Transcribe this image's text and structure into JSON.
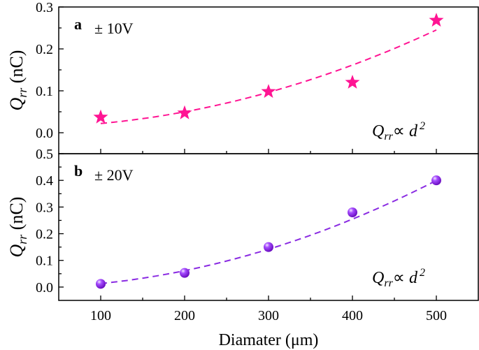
{
  "chart_data": [
    {
      "type": "scatter",
      "panel_label": "a",
      "annotation": "± 10V",
      "relation": {
        "lhs": "Q",
        "sub": "rr",
        "op": "∝ d",
        "exp": "2"
      },
      "ylabel": {
        "main": "Q",
        "sub": "rr",
        "unit": " (nC)"
      },
      "xlim": [
        50,
        550
      ],
      "ylim": [
        -0.05,
        0.3
      ],
      "yticks": [
        "0.0",
        "0.1",
        "0.2",
        "0.3"
      ],
      "x": [
        100,
        200,
        300,
        400,
        500
      ],
      "y": [
        0.037,
        0.047,
        0.098,
        0.12,
        0.268
      ],
      "marker": "star",
      "color": "#ff1493",
      "fit": {
        "style": "dashed",
        "form": "quadratic",
        "a": 9.3e-07,
        "c": 0.0127
      }
    },
    {
      "type": "scatter",
      "panel_label": "b",
      "annotation": "± 20V",
      "relation": {
        "lhs": "Q",
        "sub": "rr",
        "op": "∝ d",
        "exp": "2"
      },
      "ylabel": {
        "main": "Q",
        "sub": "rr",
        "unit": " (nC)"
      },
      "xlim": [
        50,
        550
      ],
      "ylim": [
        -0.05,
        0.5
      ],
      "yticks": [
        "0.0",
        "0.1",
        "0.2",
        "0.3",
        "0.4",
        "0.5"
      ],
      "x": [
        100,
        200,
        300,
        400,
        500
      ],
      "y": [
        0.012,
        0.053,
        0.15,
        0.28,
        0.4
      ],
      "marker": "sphere",
      "color": "#8a2be2",
      "fit": {
        "style": "dashed",
        "form": "quadratic",
        "a": 1.61e-06,
        "c": -0.003
      }
    }
  ],
  "xaxis": {
    "label": "Diamater (μm)",
    "ticks": [
      "100",
      "200",
      "300",
      "400",
      "500"
    ]
  }
}
